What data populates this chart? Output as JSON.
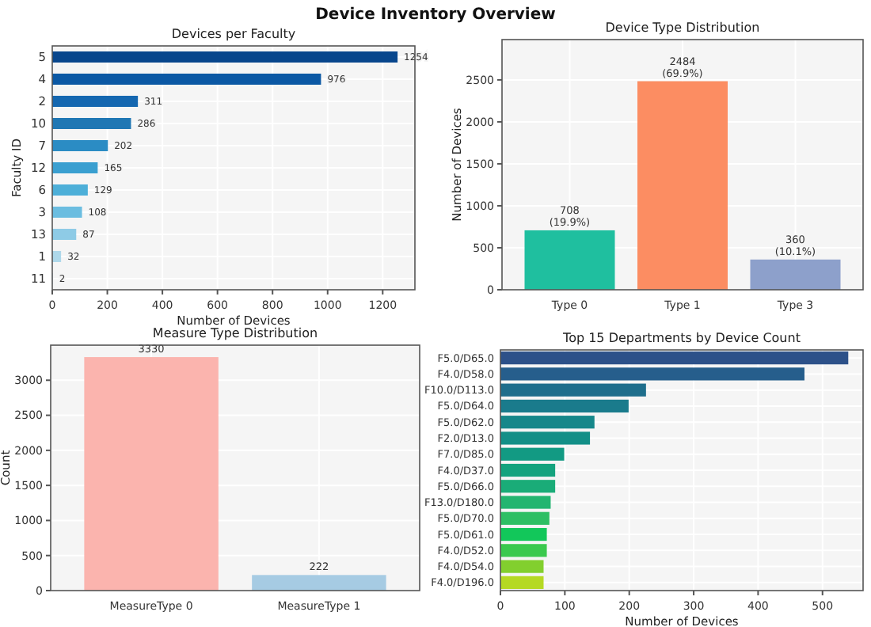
{
  "chart_data": [
    {
      "type": "other",
      "title": "Device Inventory Overview"
    },
    {
      "type": "bar",
      "title": "Devices per Faculty",
      "orientation": "horizontal",
      "xlabel": "Number of Devices",
      "ylabel": "Faculty ID",
      "categories": [
        "5",
        "4",
        "2",
        "10",
        "7",
        "12",
        "6",
        "3",
        "13",
        "1",
        "11"
      ],
      "values": [
        1254,
        976,
        311,
        286,
        202,
        165,
        129,
        108,
        87,
        32,
        2
      ],
      "colors": [
        "#08468c",
        "#0b58a4",
        "#1467b0",
        "#1f77b4",
        "#2b8cc4",
        "#3a9fd0",
        "#4dafd8",
        "#6bbde0",
        "#8ecbe6",
        "#aed8ea",
        "#c8e3ef"
      ],
      "xlim": [
        0,
        1317
      ],
      "xticks": [
        0,
        200,
        400,
        600,
        800,
        1000,
        1200
      ],
      "grid": true,
      "data_labels": true
    },
    {
      "type": "bar",
      "title": "Device Type Distribution",
      "ylabel": "Number of Devices",
      "categories": [
        "Type 0",
        "Type 1",
        "Type 3"
      ],
      "values": [
        708,
        2484,
        360
      ],
      "colors": [
        "#1fbf9f",
        "#fc8d62",
        "#8da0cb"
      ],
      "value_labels": [
        "708\n(19.9%)",
        "2484\n(69.9%)",
        "360\n(10.1%)"
      ],
      "ylim": [
        0,
        2980
      ],
      "yticks": [
        0,
        500,
        1000,
        1500,
        2000,
        2500
      ],
      "grid": true
    },
    {
      "type": "bar",
      "title": "Measure Type Distribution",
      "ylabel": "Count",
      "categories": [
        "MeasureType 0",
        "MeasureType 1"
      ],
      "values": [
        3330,
        222
      ],
      "colors": [
        "#fbb4ae",
        "#a6cbe3"
      ],
      "ylim": [
        0,
        3500
      ],
      "yticks": [
        0,
        500,
        1000,
        1500,
        2000,
        2500,
        3000
      ],
      "grid": true,
      "data_labels": true
    },
    {
      "type": "bar",
      "title": "Top 15 Departments by Device Count",
      "orientation": "horizontal",
      "xlabel": "Number of Devices",
      "categories": [
        "F5.0/D65.0",
        "F4.0/D58.0",
        "F10.0/D113.0",
        "F5.0/D64.0",
        "F5.0/D62.0",
        "F2.0/D13.0",
        "F7.0/D85.0",
        "F4.0/D37.0",
        "F5.0/D66.0",
        "F13.0/D180.0",
        "F5.0/D70.0",
        "F5.0/D61.0",
        "F4.0/D52.0",
        "F4.0/D54.0",
        "F4.0/D196.0"
      ],
      "values": [
        540,
        472,
        226,
        199,
        146,
        139,
        99,
        85,
        85,
        78,
        76,
        72,
        72,
        67,
        67
      ],
      "colors": [
        "#2d5189",
        "#265e8c",
        "#1f6e8c",
        "#1a7b8c",
        "#16878a",
        "#138f87",
        "#129a83",
        "#14a37e",
        "#1aac78",
        "#23b570",
        "#2ebf64",
        "#12c75a",
        "#3ac94e",
        "#82cf2e",
        "#b5d923"
      ],
      "xlim": [
        0,
        563
      ],
      "xticks": [
        0,
        100,
        200,
        300,
        400,
        500
      ],
      "grid": true
    }
  ]
}
